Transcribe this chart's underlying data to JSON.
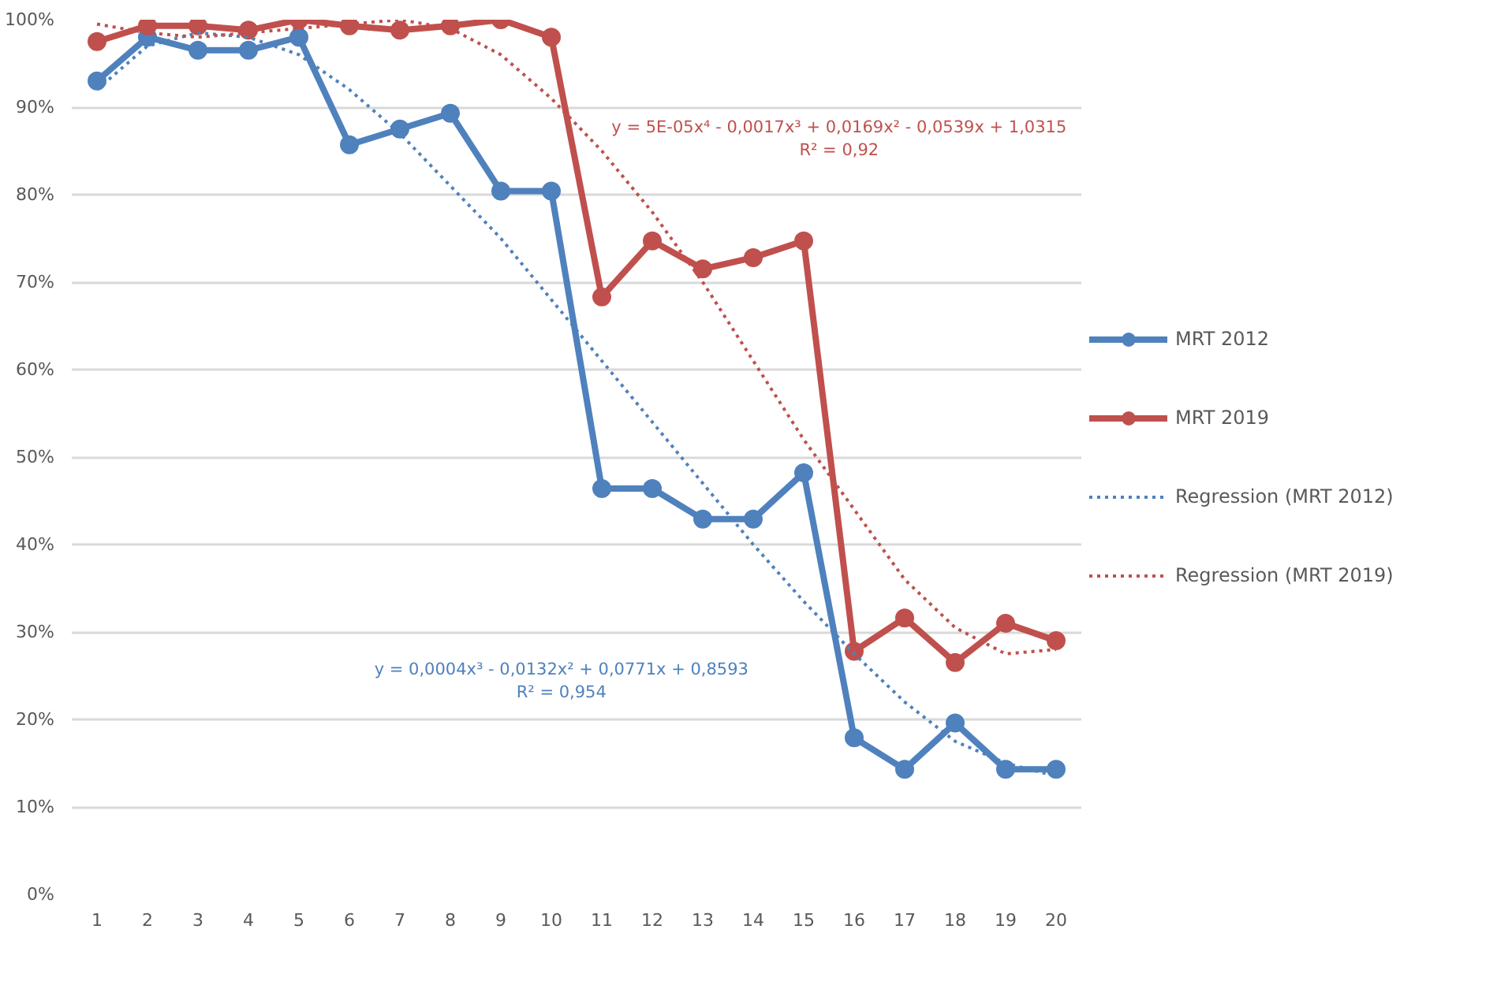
{
  "chart_data": {
    "type": "line",
    "x": [
      1,
      2,
      3,
      4,
      5,
      6,
      7,
      8,
      9,
      10,
      11,
      12,
      13,
      14,
      15,
      16,
      17,
      18,
      19,
      20
    ],
    "series": [
      {
        "name": "MRT 2012",
        "color": "#4f81bd",
        "marker": "circle",
        "line_style": "solid",
        "values": [
          93,
          98,
          96.5,
          96.5,
          98,
          85.7,
          87.5,
          89.3,
          80.4,
          80.4,
          46.4,
          46.4,
          42.9,
          42.9,
          48.2,
          17.9,
          14.3,
          19.6,
          14.3,
          14.3
        ]
      },
      {
        "name": "MRT 2019",
        "color": "#c0504d",
        "marker": "circle",
        "line_style": "solid",
        "values": [
          97.5,
          99.3,
          99.3,
          98.8,
          100,
          99.3,
          98.8,
          99.3,
          100,
          98,
          68.3,
          74.7,
          71.5,
          72.8,
          74.7,
          27.8,
          31.6,
          26.5,
          31,
          29
        ]
      },
      {
        "name": "Regression (MRT 2012)",
        "color": "#4f81bd",
        "marker": "none",
        "line_style": "dotted",
        "values": [
          92,
          97,
          98.5,
          98,
          96,
          92,
          87,
          81,
          75,
          68,
          61,
          54,
          47,
          40,
          33.5,
          27.5,
          22,
          17.5,
          15,
          13.5
        ]
      },
      {
        "name": "Regression (MRT 2019)",
        "color": "#c0504d",
        "marker": "none",
        "line_style": "dotted",
        "values": [
          99.5,
          98.5,
          98,
          98.5,
          99,
          99.5,
          100,
          99,
          96,
          91,
          85,
          78,
          70,
          61,
          52,
          44,
          36,
          30.5,
          27.5,
          28
        ]
      }
    ],
    "xlim": [
      0.5,
      20.5
    ],
    "xticks": [
      1,
      2,
      3,
      4,
      5,
      6,
      7,
      8,
      9,
      10,
      11,
      12,
      13,
      14,
      15,
      16,
      17,
      18,
      19,
      20
    ],
    "ylim": [
      0,
      100
    ],
    "yticks": [
      {
        "value": 0,
        "label": "0%"
      },
      {
        "value": 10,
        "label": "10%"
      },
      {
        "value": 20,
        "label": "20%"
      },
      {
        "value": 30,
        "label": "30%"
      },
      {
        "value": 40,
        "label": "40%"
      },
      {
        "value": 50,
        "label": "50%"
      },
      {
        "value": 60,
        "label": "60%"
      },
      {
        "value": 70,
        "label": "70%"
      },
      {
        "value": 80,
        "label": "80%"
      },
      {
        "value": 90,
        "label": "90%"
      },
      {
        "value": 100,
        "label": "100%"
      }
    ],
    "grid": "y",
    "legend": "right",
    "annotations": [
      "y = 5E-05x⁴ - 0,0017x³ + 0,0169x² - 0,0539x + 1,0315\nR² = 0,92",
      "y = 0,0004x³ - 0,0132x² + 0,0771x + 0,8593\nR² = 0,954"
    ]
  }
}
